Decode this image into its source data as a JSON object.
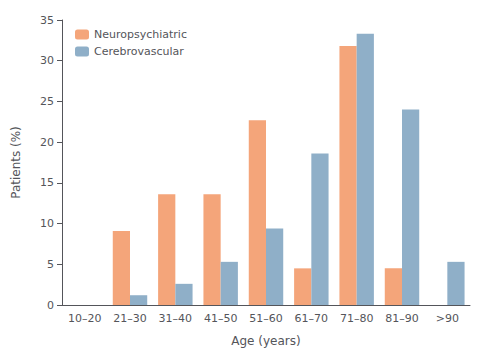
{
  "chart_data": {
    "type": "bar",
    "categories": [
      "10–20",
      "21–30",
      "31–40",
      "41–50",
      "51–60",
      "61–70",
      "71–80",
      "81–90",
      ">90"
    ],
    "series": [
      {
        "name": "Neuropsychiatric",
        "color": "#F4A57A",
        "values": [
          0,
          9.1,
          13.6,
          13.6,
          22.7,
          4.5,
          31.8,
          4.5,
          0
        ]
      },
      {
        "name": "Cerebrovascular",
        "color": "#8FAFC8",
        "values": [
          0,
          1.2,
          2.6,
          5.3,
          9.4,
          18.6,
          33.3,
          24.0,
          5.3
        ]
      }
    ],
    "xlabel": "Age (years)",
    "ylabel": "Patients (%)",
    "ylim": [
      0,
      35
    ],
    "yticks": [
      0,
      5,
      10,
      15,
      20,
      25,
      30,
      35
    ],
    "grid": false,
    "legend": "upper left"
  }
}
